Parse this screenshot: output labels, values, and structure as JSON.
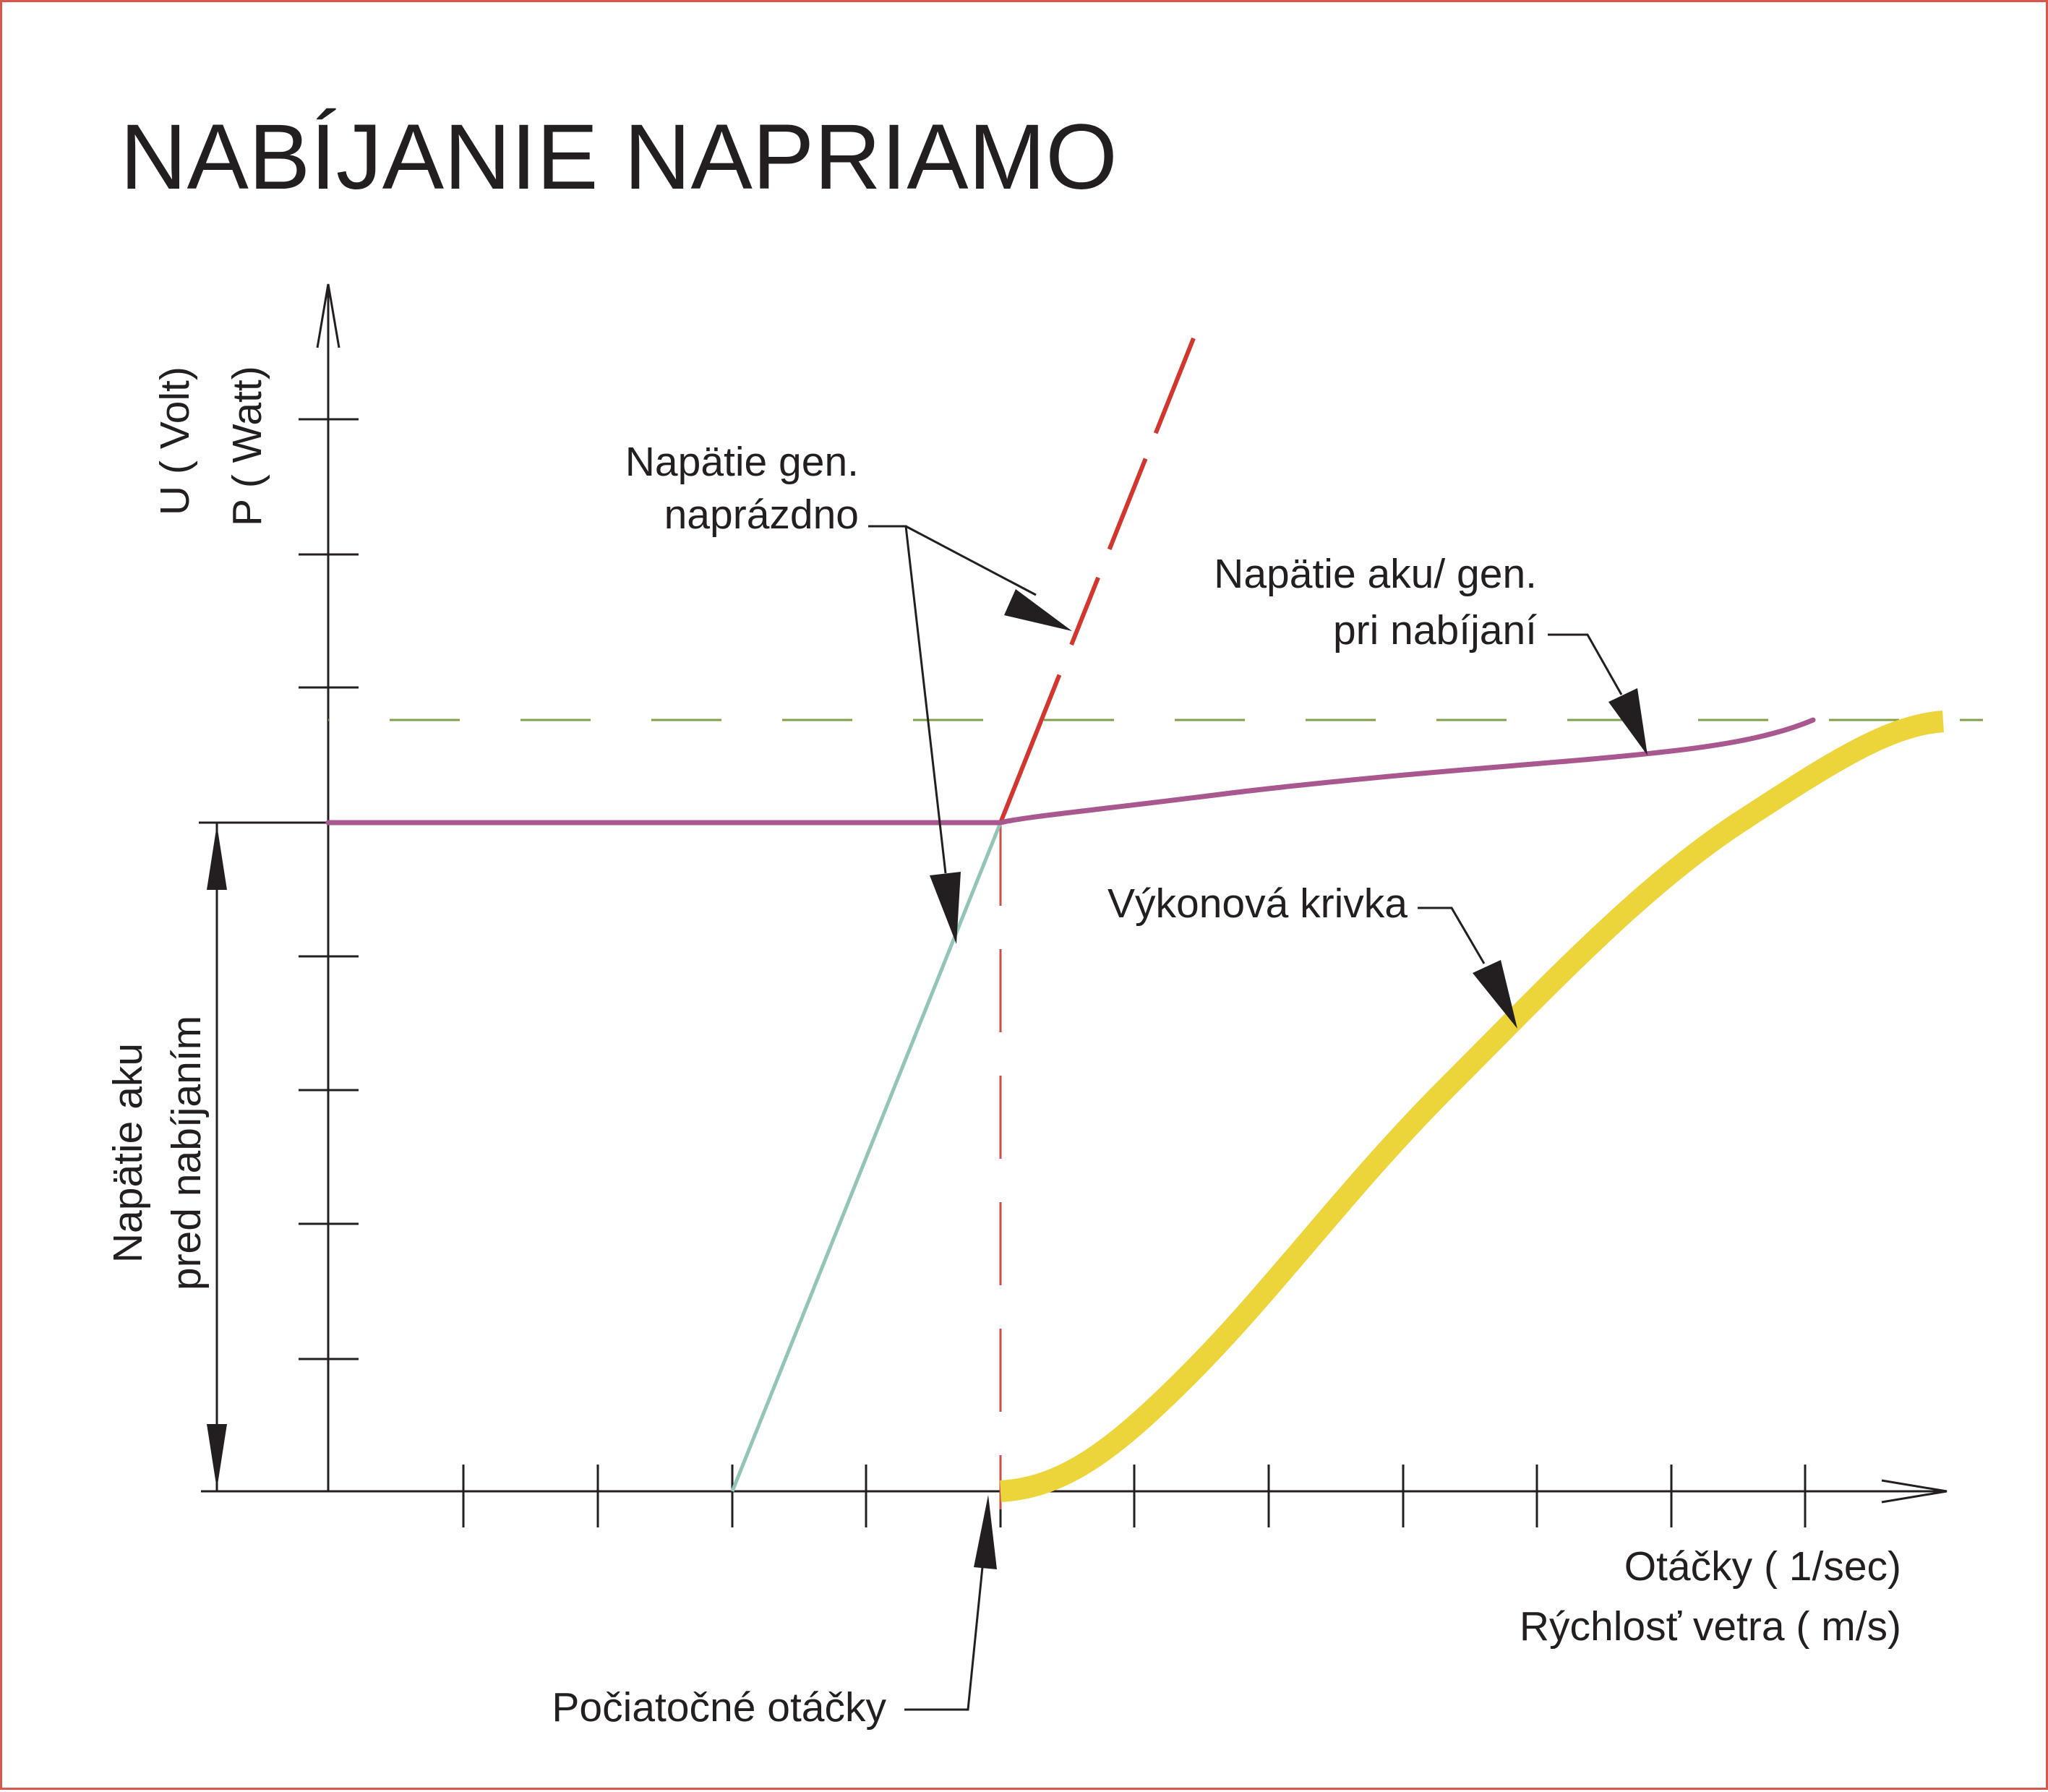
{
  "title": "NABÍJANIE NAPRIAMO",
  "y_axis_labels": {
    "line1": "U  ( Volt)",
    "line2": "P  ( Watt)"
  },
  "x_axis_labels": {
    "line1": "Otáčky  ( 1/sec)",
    "line2": "Rýchlosť vetra  ( m/s)"
  },
  "side_label": {
    "line1": "Napätie aku",
    "line2": "pred nabíjaním"
  },
  "annotations": {
    "open_circuit": {
      "line1": "Napätie gen.",
      "line2": "naprázdno"
    },
    "charging": {
      "line1": "Napätie aku/ gen.",
      "line2": "pri nabíjaní"
    },
    "power_curve": {
      "line1": "Výkonová krivka"
    },
    "start_speed": {
      "line1": "Počiatočné otáčky"
    }
  },
  "colors": {
    "frame": "#d9574a",
    "axes": "#231f20",
    "open_circuit_line": "#d2362f",
    "open_circuit_segment": "#93c4b8",
    "charging_voltage_line": "#a9578f",
    "max_voltage_dashed": "#7ea04a",
    "power_curve": "#ecd43b",
    "cut_in_dashed": "#c8504a"
  }
}
